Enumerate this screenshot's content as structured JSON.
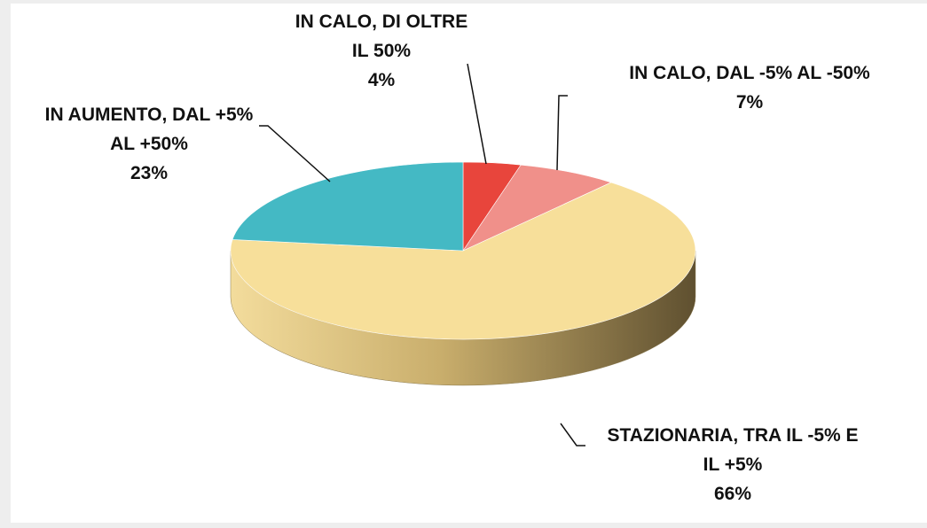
{
  "chart_data": {
    "type": "pie",
    "categories": [
      "IN CALO, DI OLTRE IL 50%",
      "IN CALO, DAL -5% AL -50%",
      "STAZIONARIA, TRA IL -5% E IL +5%",
      "IN AUMENTO, DAL +5% AL +50%"
    ],
    "values": [
      4,
      7,
      66,
      23
    ],
    "value_labels": [
      "4%",
      "7%",
      "66%",
      "23%"
    ],
    "colors": [
      "#e8453c",
      "#f0908a",
      "#f7df9a",
      "#44b9c4"
    ]
  }
}
